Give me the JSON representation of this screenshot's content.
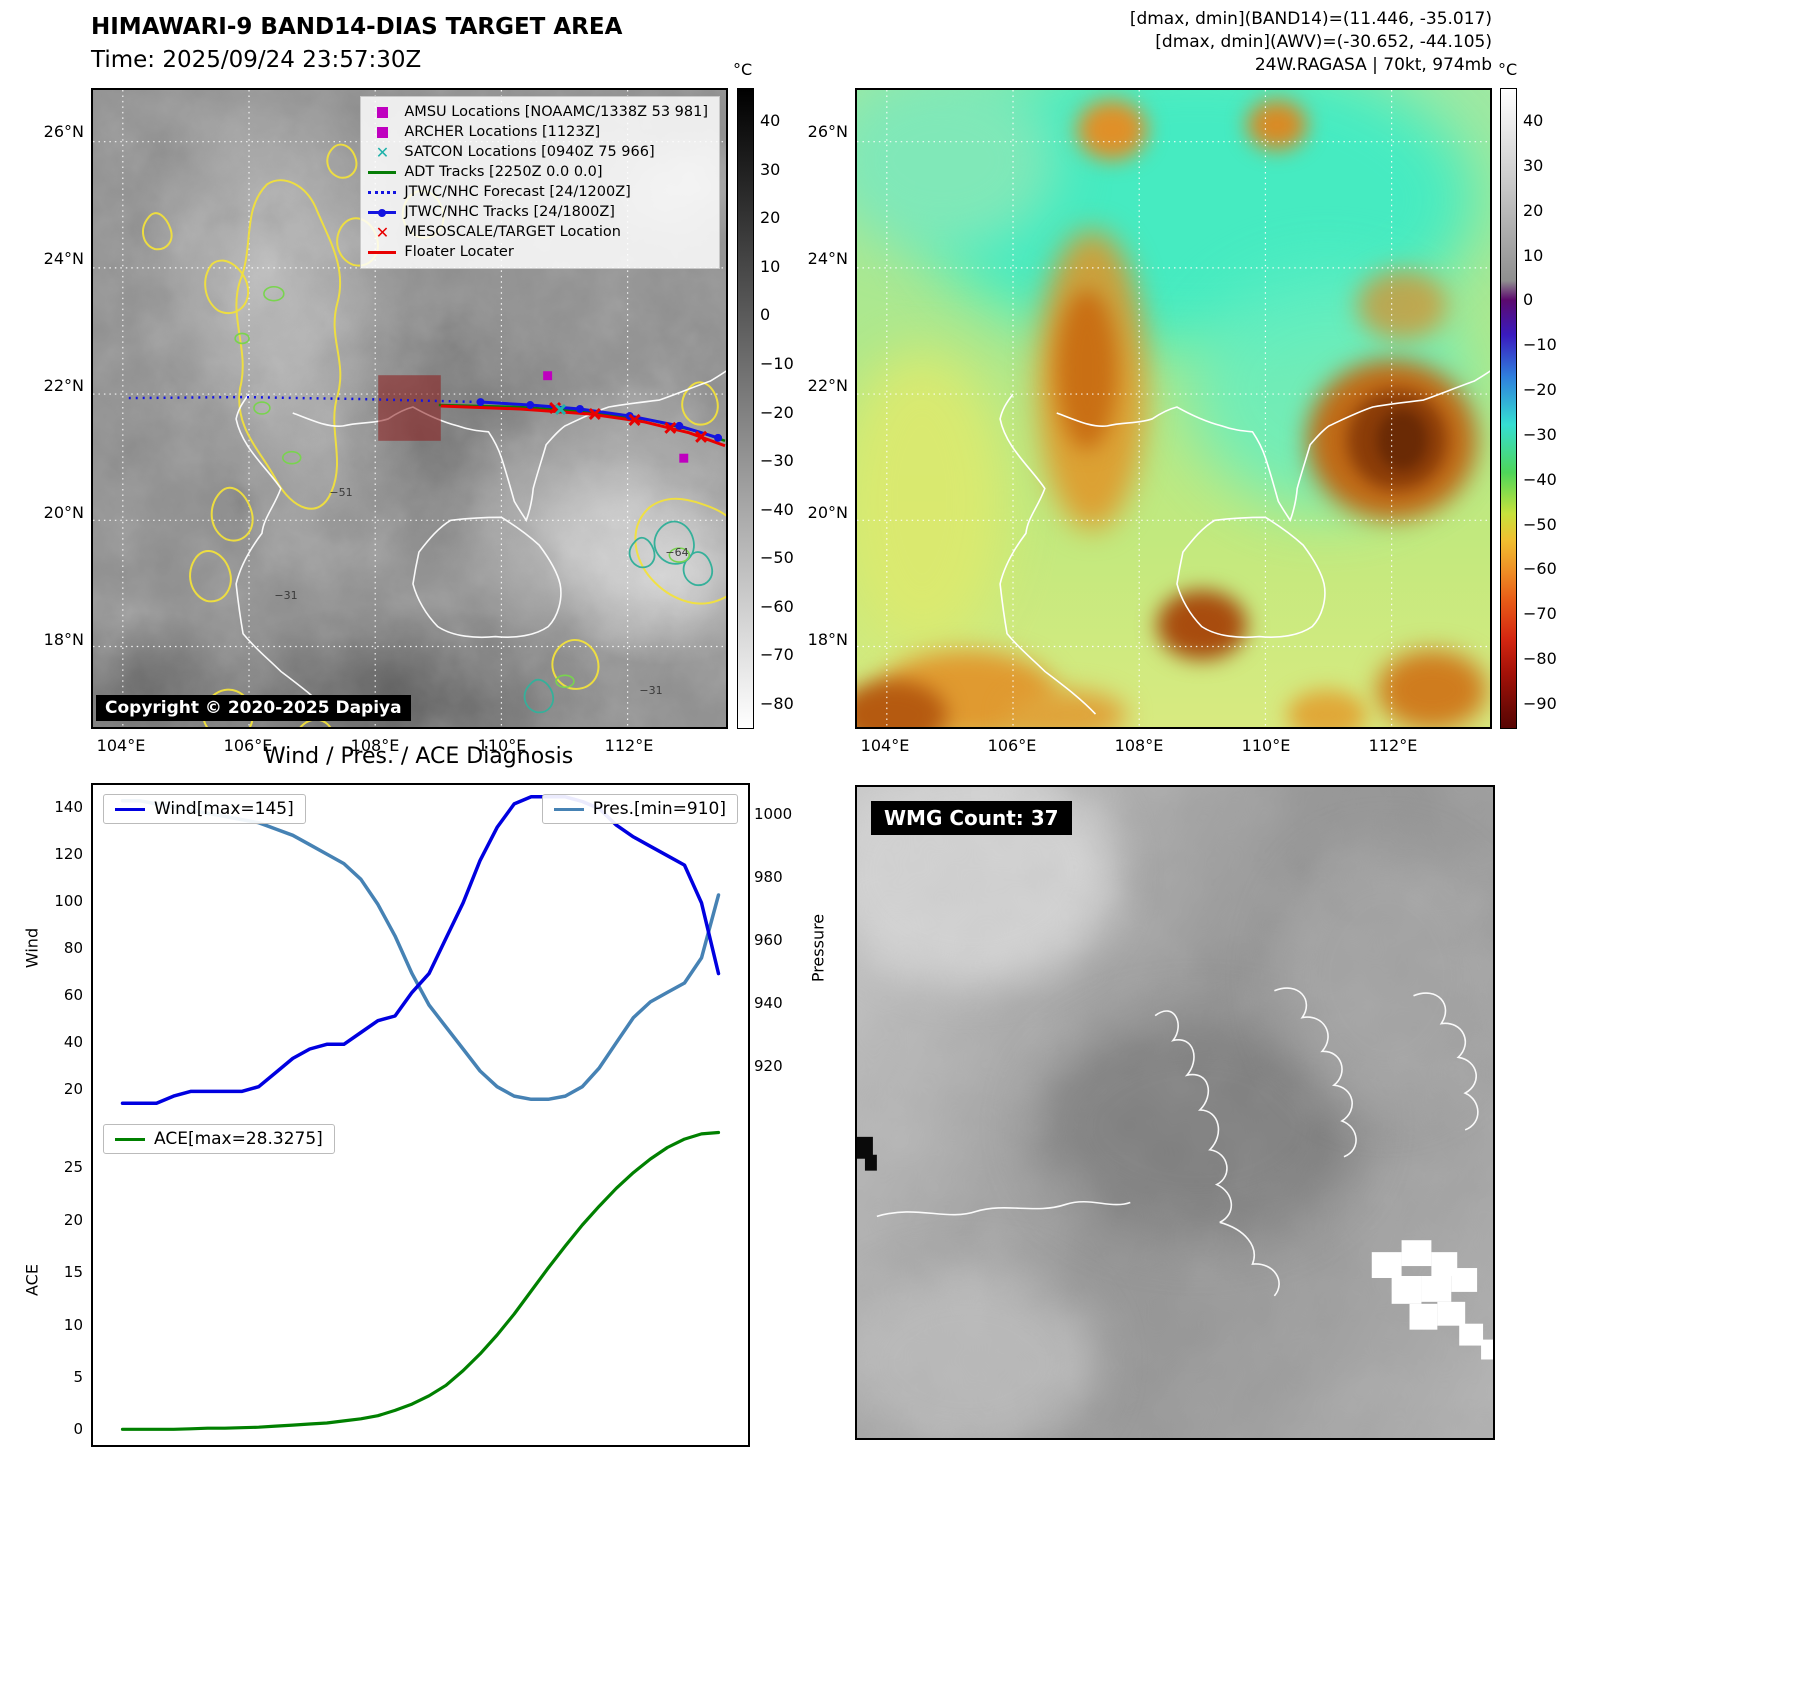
{
  "top_left": {
    "title": "HIMAWARI-9 BAND14-DIAS TARGET AREA",
    "time_label": "Time: 2025/09/24 23:57:30Z",
    "copyright": "Copyright © 2020-2025 Dapiya",
    "legend_items": [
      {
        "marker": "amsu-square",
        "label": "AMSU Locations [NOAAMC/1338Z 53 981]"
      },
      {
        "marker": "archer-square",
        "label": "ARCHER Locations [1123Z]"
      },
      {
        "marker": "satcon-x",
        "label": "SATCON Locations [0940Z 75 966]"
      },
      {
        "marker": "adt-line",
        "label": "ADT Tracks [2250Z 0.0 0.0]"
      },
      {
        "marker": "forecast-dotted",
        "label": "JTWC/NHC Forecast [24/1200Z]"
      },
      {
        "marker": "track-line-dot",
        "label": "JTWC/NHC Tracks [24/1800Z]"
      },
      {
        "marker": "target-x",
        "label": "MESOSCALE/TARGET Location"
      },
      {
        "marker": "floater-line",
        "label": "Floater Locater"
      }
    ],
    "lat_ticks": [
      "26°N",
      "24°N",
      "22°N",
      "20°N",
      "18°N"
    ],
    "lon_ticks": [
      "104°E",
      "106°E",
      "108°E",
      "110°E",
      "112°E"
    ],
    "colorbar_unit": "°C",
    "colorbar_ticks": [
      "40",
      "30",
      "20",
      "10",
      "0",
      "−10",
      "−20",
      "−30",
      "−40",
      "−50",
      "−60",
      "−70",
      "−80"
    ],
    "contour_labels": [
      "−51",
      "−64",
      "−31",
      "−31"
    ]
  },
  "top_right": {
    "header_line1": "[dmax, dmin](BAND14)=(11.446, -35.017)",
    "header_line2": "[dmax, dmin](AWV)=(-30.652, -44.105)",
    "header_line3": "24W.RAGASA | 70kt, 974mb",
    "lat_ticks": [
      "26°N",
      "24°N",
      "22°N",
      "20°N",
      "18°N"
    ],
    "lon_ticks": [
      "104°E",
      "106°E",
      "108°E",
      "110°E",
      "112°E"
    ],
    "colorbar_unit": "°C",
    "colorbar_ticks": [
      "40",
      "30",
      "20",
      "10",
      "0",
      "−10",
      "−20",
      "−30",
      "−40",
      "−50",
      "−60",
      "−70",
      "−80",
      "−90"
    ]
  },
  "bottom_left": {
    "title": "Wind / Pres. / ACE Diagnosis"
  },
  "bottom_right": {
    "wmg_label": "WMG Count: 37"
  },
  "chart_data": [
    {
      "type": "line",
      "title": "Wind / Pres. / ACE Diagnosis",
      "ylabel_left": "Wind",
      "ylabel_right": "Pressure",
      "yticks_left": [
        20,
        40,
        60,
        80,
        100,
        120,
        140
      ],
      "yticks_right": [
        920,
        940,
        960,
        980,
        1000
      ],
      "ylim_left": [
        10,
        150
      ],
      "ylim_right": [
        905,
        1010
      ],
      "series": [
        {
          "name": "Wind[max=145]",
          "axis": "left",
          "color": "#0000e0",
          "max": 145,
          "values": [
            15,
            15,
            15,
            18,
            20,
            20,
            20,
            20,
            22,
            28,
            34,
            38,
            40,
            40,
            45,
            50,
            52,
            62,
            70,
            85,
            100,
            118,
            132,
            142,
            145,
            145,
            145,
            143,
            140,
            133,
            128,
            124,
            120,
            116,
            100,
            70
          ]
        },
        {
          "name": "Pres.[min=910]",
          "axis": "right",
          "color": "#4682b4",
          "min": 910,
          "values": [
            1005,
            1005,
            1004,
            1003,
            1002,
            1001,
            1000,
            999,
            998,
            996,
            994,
            991,
            988,
            985,
            980,
            972,
            962,
            950,
            940,
            933,
            926,
            919,
            914,
            911,
            910,
            910,
            911,
            914,
            920,
            928,
            936,
            941,
            944,
            947,
            955,
            975
          ]
        }
      ]
    },
    {
      "type": "line",
      "ylabel": "ACE",
      "yticks": [
        0,
        5,
        10,
        15,
        20,
        25
      ],
      "ylim": [
        -1.5,
        30
      ],
      "series": [
        {
          "name": "ACE[max=28.3275]",
          "color": "#008000",
          "max": 28.3275,
          "values": [
            0,
            0,
            0,
            0,
            0.05,
            0.1,
            0.1,
            0.15,
            0.2,
            0.3,
            0.4,
            0.5,
            0.6,
            0.8,
            1.0,
            1.3,
            1.8,
            2.4,
            3.2,
            4.2,
            5.6,
            7.2,
            9.0,
            11.0,
            13.2,
            15.4,
            17.5,
            19.5,
            21.3,
            23.0,
            24.5,
            25.8,
            26.9,
            27.7,
            28.2,
            28.33
          ]
        }
      ]
    }
  ]
}
